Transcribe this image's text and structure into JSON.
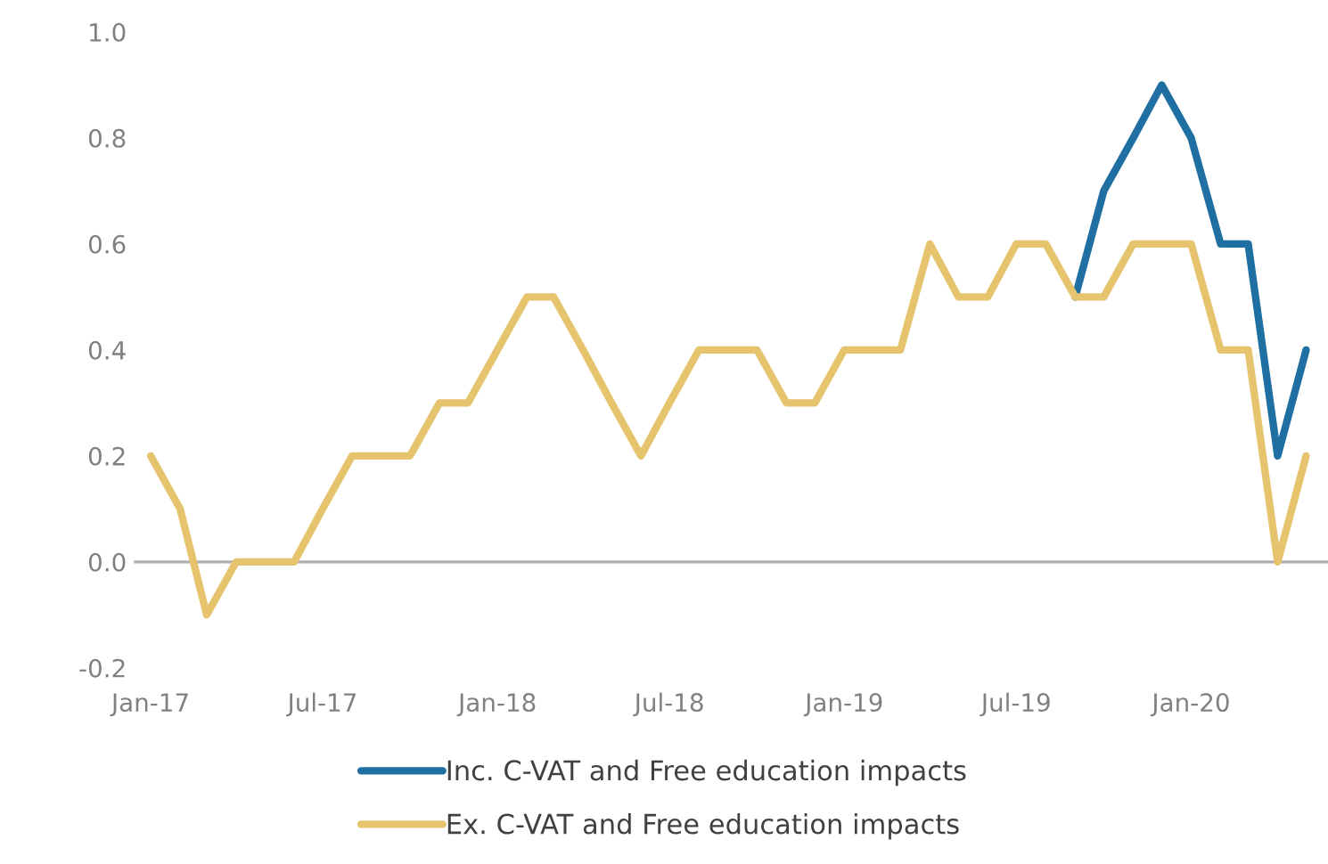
{
  "chart_data": {
    "type": "line",
    "x": [
      "2017-01",
      "2017-02",
      "2017-03",
      "2017-04",
      "2017-05",
      "2017-06",
      "2017-07",
      "2017-08",
      "2017-09",
      "2017-10",
      "2017-11",
      "2017-12",
      "2018-01",
      "2018-02",
      "2018-03",
      "2018-04",
      "2018-05",
      "2018-06",
      "2018-07",
      "2018-08",
      "2018-09",
      "2018-10",
      "2018-11",
      "2018-12",
      "2019-01",
      "2019-02",
      "2019-03",
      "2019-04",
      "2019-05",
      "2019-06",
      "2019-07",
      "2019-08",
      "2019-09",
      "2019-10",
      "2019-11",
      "2019-12",
      "2020-01",
      "2020-02",
      "2020-03",
      "2020-04",
      "2020-05"
    ],
    "series": [
      {
        "name": "Inc. C-VAT and Free education impacts",
        "color": "#1f6fa3",
        "values": [
          null,
          null,
          null,
          null,
          null,
          null,
          null,
          null,
          null,
          null,
          null,
          null,
          null,
          null,
          null,
          null,
          null,
          null,
          null,
          null,
          null,
          null,
          null,
          null,
          null,
          null,
          null,
          null,
          null,
          null,
          null,
          null,
          0.5,
          0.7,
          0.8,
          0.9,
          0.8,
          0.6,
          0.6,
          0.2,
          0.4
        ]
      },
      {
        "name": "Ex. C-VAT and Free education impacts",
        "color": "#e6c46e",
        "values": [
          0.2,
          0.1,
          -0.1,
          0.0,
          0.0,
          0.0,
          0.1,
          0.2,
          0.2,
          0.2,
          0.3,
          0.3,
          0.4,
          0.5,
          0.5,
          0.4,
          0.3,
          0.2,
          0.3,
          0.4,
          0.4,
          0.4,
          0.3,
          0.3,
          0.4,
          0.4,
          0.4,
          0.6,
          0.5,
          0.5,
          0.6,
          0.6,
          0.5,
          0.5,
          0.6,
          0.6,
          0.6,
          0.4,
          0.4,
          0.0,
          0.2
        ]
      }
    ],
    "xlim": [
      "2016-12-16",
      "2020-05-24"
    ],
    "xticks": [
      {
        "value": "2017-01",
        "label": "Jan-17"
      },
      {
        "value": "2017-07",
        "label": "Jul-17"
      },
      {
        "value": "2018-01",
        "label": "Jan-18"
      },
      {
        "value": "2018-07",
        "label": "Jul-18"
      },
      {
        "value": "2019-01",
        "label": "Jan-19"
      },
      {
        "value": "2019-07",
        "label": "Jul-19"
      },
      {
        "value": "2020-01",
        "label": "Jan-20"
      }
    ],
    "ylim": [
      -0.2,
      1.0
    ],
    "yticks": [
      {
        "value": -0.2,
        "label": "-0.2"
      },
      {
        "value": 0.0,
        "label": "0.0"
      },
      {
        "value": 0.2,
        "label": "0.2"
      },
      {
        "value": 0.4,
        "label": "0.4"
      },
      {
        "value": 0.6,
        "label": "0.6"
      },
      {
        "value": 0.8,
        "label": "0.8"
      },
      {
        "value": 1.0,
        "label": "1.0"
      }
    ],
    "legend": "bottom",
    "line_style": "solid",
    "marker": "none"
  }
}
